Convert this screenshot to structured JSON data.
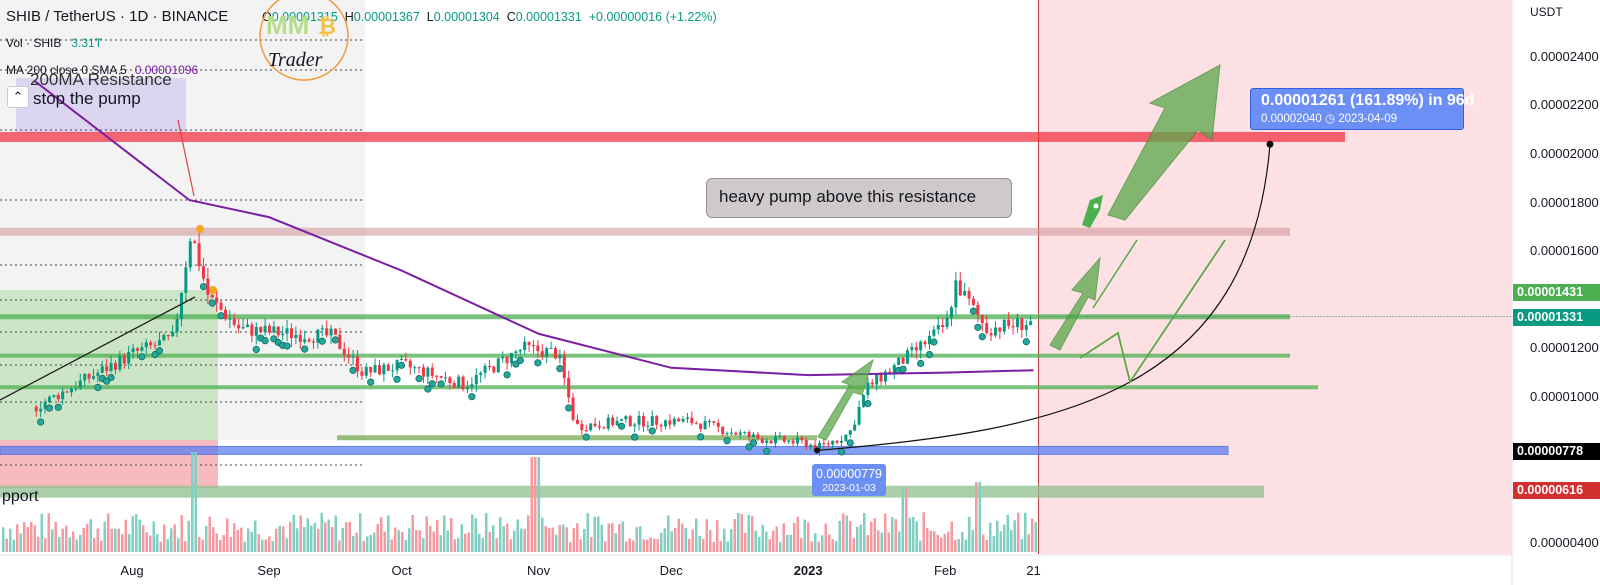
{
  "header": {
    "symbol": "SHIB / TetherUS · 1D · BINANCE",
    "o_label": "O",
    "o_value": "0.00001315",
    "h_label": "H",
    "h_value": "0.00001367",
    "l_label": "L",
    "l_value": "0.00001304",
    "c_label": "C",
    "c_value": "0.00001331",
    "change": "+0.00000016 (+1.22%)"
  },
  "indicators": [
    {
      "label": "Vol · SHIB",
      "value": "3.31T"
    },
    {
      "label": "MA 200 close 0 SMA 5",
      "value": "0.00001096"
    }
  ],
  "logo": {
    "initials": "MM",
    "coin": "₿",
    "text": "Trader"
  },
  "collapse_icon": "chevron-up-icon",
  "annotations": {
    "resistance_label": "200MA Resistance",
    "stop_label": "stop the pump",
    "callout": "heavy pump above this resistance",
    "support_label": "pport",
    "projection": {
      "line1": "0.00001261 (161.89%) in 96d",
      "line2": "0.00002040",
      "date": "2023-04-09"
    },
    "low": {
      "value": "0.00000779",
      "date": "2023-01-03"
    }
  },
  "price_tags": [
    {
      "value": "0.00001431",
      "color": "#4caf50"
    },
    {
      "value": "0.00001331",
      "color": "#089981"
    },
    {
      "value": "0.00000778",
      "color": "#000000"
    },
    {
      "value": "0.00000616",
      "color": "#d32f2f"
    }
  ],
  "chart_data": {
    "type": "candlestick",
    "symbol": "SHIB / TetherUS",
    "interval": "1D",
    "exchange": "BINANCE",
    "y_axis_title": "USDT",
    "y_ticks": [
      "0.00002400",
      "0.00002200",
      "0.00002000",
      "0.00001800",
      "0.00001600",
      "0.00001200",
      "0.00001000",
      "0.00000400"
    ],
    "ylim": [
      3.6e-06,
      2.54e-05
    ],
    "x_ticks": [
      {
        "label": "Aug",
        "date": "2022-08-01"
      },
      {
        "label": "Sep",
        "date": "2022-09-01"
      },
      {
        "label": "Oct",
        "date": "2022-10-01"
      },
      {
        "label": "Nov",
        "date": "2022-11-01"
      },
      {
        "label": "Dec",
        "date": "2022-12-01"
      },
      {
        "label": "2023",
        "date": "2023-01-01"
      },
      {
        "label": "Feb",
        "date": "2023-02-01"
      },
      {
        "label": "21",
        "date": "2023-02-21"
      }
    ],
    "price_series": [
      {
        "date": "2022-07-10",
        "close": 9.6e-06
      },
      {
        "date": "2022-07-20",
        "close": 1.06e-05
      },
      {
        "date": "2022-08-01",
        "close": 1.18e-05
      },
      {
        "date": "2022-08-10",
        "close": 1.24e-05
      },
      {
        "date": "2022-08-14",
        "close": 1.68e-05
      },
      {
        "date": "2022-08-18",
        "close": 1.41e-05
      },
      {
        "date": "2022-08-25",
        "close": 1.28e-05
      },
      {
        "date": "2022-09-05",
        "close": 1.26e-05
      },
      {
        "date": "2022-09-15",
        "close": 1.25e-05
      },
      {
        "date": "2022-09-22",
        "close": 1.1e-05
      },
      {
        "date": "2022-10-01",
        "close": 1.13e-05
      },
      {
        "date": "2022-10-15",
        "close": 1.05e-05
      },
      {
        "date": "2022-10-28",
        "close": 1.2e-05
      },
      {
        "date": "2022-11-05",
        "close": 1.18e-05
      },
      {
        "date": "2022-11-09",
        "close": 8.8e-06
      },
      {
        "date": "2022-11-20",
        "close": 9e-06
      },
      {
        "date": "2022-12-05",
        "close": 9e-06
      },
      {
        "date": "2022-12-20",
        "close": 8.3e-06
      },
      {
        "date": "2022-12-31",
        "close": 8.1e-06
      },
      {
        "date": "2023-01-03",
        "close": 7.9e-06
      },
      {
        "date": "2023-01-10",
        "close": 8.5e-06
      },
      {
        "date": "2023-01-14",
        "close": 1.04e-05
      },
      {
        "date": "2023-01-25",
        "close": 1.19e-05
      },
      {
        "date": "2023-02-01",
        "close": 1.3e-05
      },
      {
        "date": "2023-02-03",
        "close": 1.47e-05
      },
      {
        "date": "2023-02-10",
        "close": 1.28e-05
      },
      {
        "date": "2023-02-21",
        "close": 1.31e-05
      }
    ],
    "ma200_series": [
      {
        "date": "2022-07-10",
        "value": 2.3e-05
      },
      {
        "date": "2022-08-14",
        "value": 1.81e-05
      },
      {
        "date": "2022-09-01",
        "value": 1.74e-05
      },
      {
        "date": "2022-10-01",
        "value": 1.52e-05
      },
      {
        "date": "2022-11-01",
        "value": 1.26e-05
      },
      {
        "date": "2022-12-01",
        "value": 1.12e-05
      },
      {
        "date": "2023-01-01",
        "value": 1.09e-05
      },
      {
        "date": "2023-02-01",
        "value": 1.1e-05
      },
      {
        "date": "2023-02-21",
        "value": 1.11e-05
      }
    ],
    "horizontal_levels": [
      {
        "price": 2.07e-05,
        "color": "#f23645",
        "kind": "resistance zone"
      },
      {
        "price": 1.68e-05,
        "color": "#c98a8e",
        "kind": "resistance"
      },
      {
        "price": 1.33e-05,
        "color": "#4caf50",
        "kind": "support/resistance"
      },
      {
        "price": 1.17e-05,
        "color": "#4caf50",
        "kind": "support/resistance"
      },
      {
        "price": 1.04e-05,
        "color": "#4caf50",
        "kind": "support/resistance"
      },
      {
        "price": 7.8e-06,
        "color": "#5b7ff2",
        "kind": "support zone"
      },
      {
        "price": 6.1e-06,
        "color": "#8fbf8f",
        "kind": "support"
      }
    ],
    "projection": {
      "from_date": "2023-01-03",
      "from_price": 7.8e-06,
      "to_date": "2023-04-09",
      "to_price": 2.04e-05,
      "change": "0.00001261 (161.89%)",
      "days": 96
    },
    "current_price": 1.331e-05,
    "grid": false,
    "legend": "top-left"
  }
}
